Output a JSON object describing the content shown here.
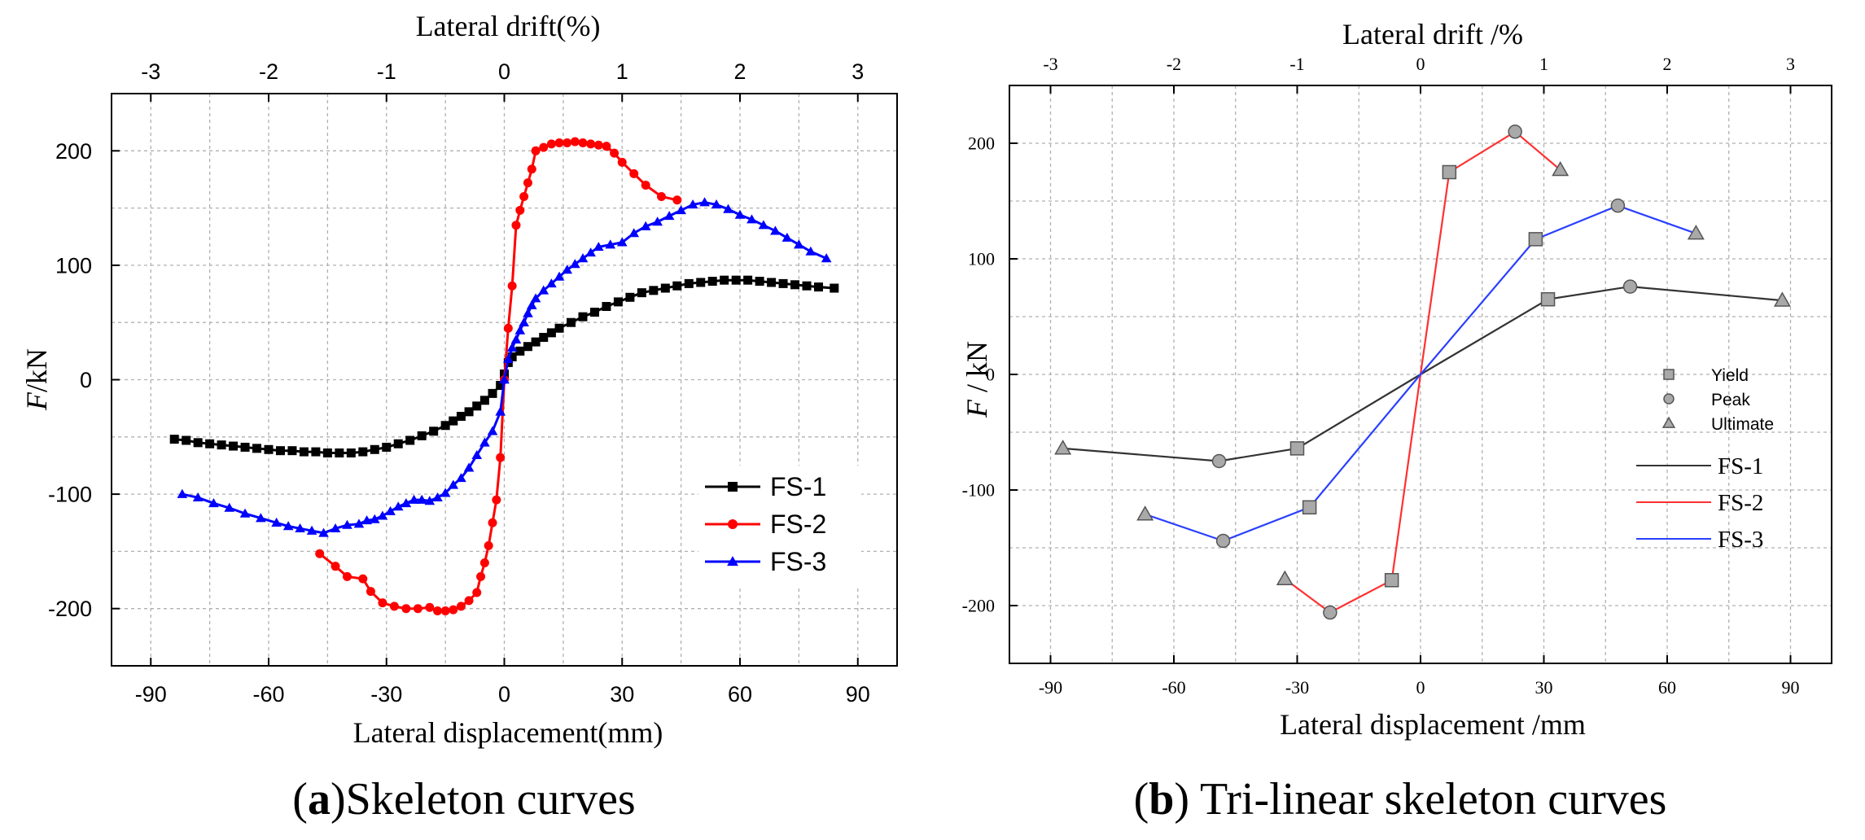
{
  "chart_data": [
    {
      "type": "line",
      "caption_letter": "a",
      "caption_text": "Skeleton curves",
      "xlabel": "Lateral displacement(mm)",
      "ylabel_italic": "F",
      "ylabel_rest": "/kN",
      "x2label": "Lateral drift(%)",
      "xlim": [
        -100,
        100
      ],
      "ylim": [
        -250,
        250
      ],
      "x_ticks": [
        -90,
        -60,
        -30,
        0,
        30,
        60,
        90
      ],
      "y_ticks": [
        -200,
        -100,
        0,
        100,
        200
      ],
      "x2_ticks": [
        -3,
        -2,
        -1,
        0,
        1,
        2,
        3
      ],
      "x2_scale_mm_per_unit": 30,
      "grid": true,
      "legend_position": "lower-right",
      "series": [
        {
          "name": "FS-1",
          "color": "#000000",
          "marker": "square",
          "points": [
            [
              -84,
              -52
            ],
            [
              -81,
              -53
            ],
            [
              -78,
              -55
            ],
            [
              -75,
              -56
            ],
            [
              -72,
              -57
            ],
            [
              -69,
              -58
            ],
            [
              -66,
              -59
            ],
            [
              -63,
              -60
            ],
            [
              -60,
              -61
            ],
            [
              -57,
              -62
            ],
            [
              -54,
              -62
            ],
            [
              -51,
              -63
            ],
            [
              -48,
              -63
            ],
            [
              -45,
              -64
            ],
            [
              -42,
              -64
            ],
            [
              -39,
              -64
            ],
            [
              -36,
              -63
            ],
            [
              -33,
              -61
            ],
            [
              -30,
              -59
            ],
            [
              -27,
              -56
            ],
            [
              -24,
              -53
            ],
            [
              -21,
              -49
            ],
            [
              -18,
              -45
            ],
            [
              -15,
              -40
            ],
            [
              -13,
              -36
            ],
            [
              -11,
              -32
            ],
            [
              -9,
              -28
            ],
            [
              -7,
              -23
            ],
            [
              -5,
              -18
            ],
            [
              -3,
              -12
            ],
            [
              -1,
              -5
            ],
            [
              0,
              5
            ],
            [
              1,
              15
            ],
            [
              2,
              20
            ],
            [
              4,
              25
            ],
            [
              6,
              29
            ],
            [
              8,
              33
            ],
            [
              10,
              37
            ],
            [
              12,
              41
            ],
            [
              14,
              45
            ],
            [
              17,
              50
            ],
            [
              20,
              55
            ],
            [
              23,
              59
            ],
            [
              26,
              64
            ],
            [
              29,
              68
            ],
            [
              32,
              72
            ],
            [
              35,
              76
            ],
            [
              38,
              78
            ],
            [
              41,
              80
            ],
            [
              44,
              82
            ],
            [
              47,
              84
            ],
            [
              50,
              85
            ],
            [
              53,
              86
            ],
            [
              56,
              87
            ],
            [
              59,
              87
            ],
            [
              62,
              87
            ],
            [
              65,
              86
            ],
            [
              68,
              85
            ],
            [
              71,
              84
            ],
            [
              74,
              83
            ],
            [
              77,
              82
            ],
            [
              80,
              81
            ],
            [
              84,
              80
            ]
          ]
        },
        {
          "name": "FS-2",
          "color": "#ff0000",
          "marker": "circle",
          "points": [
            [
              -47,
              -152
            ],
            [
              -43,
              -163
            ],
            [
              -40,
              -172
            ],
            [
              -36,
              -174
            ],
            [
              -34,
              -185
            ],
            [
              -31,
              -195
            ],
            [
              -28,
              -198
            ],
            [
              -25,
              -200
            ],
            [
              -22,
              -200
            ],
            [
              -19,
              -199
            ],
            [
              -17,
              -202
            ],
            [
              -15,
              -202
            ],
            [
              -13,
              -201
            ],
            [
              -11,
              -198
            ],
            [
              -9,
              -193
            ],
            [
              -7,
              -186
            ],
            [
              -6,
              -172
            ],
            [
              -5,
              -160
            ],
            [
              -4,
              -145
            ],
            [
              -3,
              -125
            ],
            [
              -2,
              -105
            ],
            [
              -1,
              -68
            ],
            [
              0,
              0
            ],
            [
              1,
              45
            ],
            [
              2,
              82
            ],
            [
              3,
              135
            ],
            [
              4,
              148
            ],
            [
              5,
              160
            ],
            [
              6,
              172
            ],
            [
              7,
              184
            ],
            [
              8,
              200
            ],
            [
              10,
              203
            ],
            [
              12,
              206
            ],
            [
              14,
              207
            ],
            [
              16,
              207
            ],
            [
              18,
              208
            ],
            [
              20,
              207
            ],
            [
              22,
              206
            ],
            [
              24,
              205
            ],
            [
              26,
              204
            ],
            [
              28,
              198
            ],
            [
              30,
              190
            ],
            [
              33,
              180
            ],
            [
              36,
              170
            ],
            [
              40,
              160
            ],
            [
              44,
              157
            ]
          ]
        },
        {
          "name": "FS-3",
          "color": "#0000ff",
          "marker": "triangle",
          "points": [
            [
              -82,
              -100
            ],
            [
              -78,
              -103
            ],
            [
              -74,
              -108
            ],
            [
              -70,
              -112
            ],
            [
              -66,
              -117
            ],
            [
              -62,
              -121
            ],
            [
              -58,
              -125
            ],
            [
              -55,
              -128
            ],
            [
              -52,
              -130
            ],
            [
              -49,
              -132
            ],
            [
              -46,
              -134
            ],
            [
              -43,
              -130
            ],
            [
              -40,
              -127
            ],
            [
              -37,
              -126
            ],
            [
              -35,
              -123
            ],
            [
              -33,
              -122
            ],
            [
              -31,
              -119
            ],
            [
              -29,
              -115
            ],
            [
              -27,
              -111
            ],
            [
              -25,
              -108
            ],
            [
              -23,
              -105
            ],
            [
              -21,
              -105
            ],
            [
              -19,
              -106
            ],
            [
              -17,
              -103
            ],
            [
              -15,
              -99
            ],
            [
              -13,
              -92
            ],
            [
              -11,
              -86
            ],
            [
              -9,
              -77
            ],
            [
              -7,
              -66
            ],
            [
              -5,
              -55
            ],
            [
              -3,
              -45
            ],
            [
              -1,
              -28
            ],
            [
              0,
              0
            ],
            [
              1,
              18
            ],
            [
              2,
              28
            ],
            [
              3,
              35
            ],
            [
              4,
              43
            ],
            [
              5,
              50
            ],
            [
              6,
              58
            ],
            [
              7,
              65
            ],
            [
              8,
              71
            ],
            [
              10,
              78
            ],
            [
              12,
              84
            ],
            [
              14,
              90
            ],
            [
              16,
              96
            ],
            [
              18,
              101
            ],
            [
              20,
              106
            ],
            [
              22,
              111
            ],
            [
              24,
              116
            ],
            [
              27,
              118
            ],
            [
              30,
              120
            ],
            [
              33,
              128
            ],
            [
              36,
              134
            ],
            [
              39,
              138
            ],
            [
              42,
              143
            ],
            [
              45,
              148
            ],
            [
              48,
              153
            ],
            [
              51,
              155
            ],
            [
              54,
              153
            ],
            [
              57,
              149
            ],
            [
              60,
              144
            ],
            [
              63,
              140
            ],
            [
              66,
              135
            ],
            [
              69,
              130
            ],
            [
              72,
              124
            ],
            [
              75,
              118
            ],
            [
              78,
              112
            ],
            [
              82,
              106
            ]
          ]
        }
      ]
    },
    {
      "type": "line",
      "caption_letter": "b",
      "caption_text": "Tri-linear skeleton curves",
      "xlabel": "Lateral displacement /mm",
      "ylabel_italic": "F",
      "ylabel_rest": " / kN",
      "x2label": "Lateral drift /%",
      "xlim": [
        -100,
        100
      ],
      "ylim": [
        -250,
        250
      ],
      "x_ticks": [
        -90,
        -60,
        -30,
        0,
        30,
        60,
        90
      ],
      "y_ticks": [
        -200,
        -100,
        0,
        100,
        200
      ],
      "x2_ticks": [
        -3,
        -2,
        -1,
        0,
        1,
        2,
        3
      ],
      "x2_scale_mm_per_unit": 30,
      "grid": true,
      "legend_position": "right",
      "marker_legend": [
        {
          "label": "Yield",
          "marker": "square"
        },
        {
          "label": "Peak",
          "marker": "circle"
        },
        {
          "label": "Ultimate",
          "marker": "triangle"
        }
      ],
      "series": [
        {
          "name": "FS-1",
          "color": "#333333",
          "points": [
            [
              -87,
              -64,
              "triangle"
            ],
            [
              -49,
              -75,
              "circle"
            ],
            [
              -30,
              -64,
              "square"
            ],
            [
              0,
              0,
              ""
            ],
            [
              31,
              65,
              "square"
            ],
            [
              51,
              76,
              "circle"
            ],
            [
              88,
              64,
              "triangle"
            ]
          ]
        },
        {
          "name": "FS-2",
          "color": "#ff3030",
          "points": [
            [
              -33,
              -177,
              "triangle"
            ],
            [
              -22,
              -206,
              "circle"
            ],
            [
              -7,
              -178,
              "square"
            ],
            [
              0,
              0,
              ""
            ],
            [
              7,
              175,
              "square"
            ],
            [
              23,
              210,
              "circle"
            ],
            [
              34,
              177,
              "triangle"
            ]
          ]
        },
        {
          "name": "FS-3",
          "color": "#2a40ff",
          "points": [
            [
              -67,
              -121,
              "triangle"
            ],
            [
              -48,
              -144,
              "circle"
            ],
            [
              -27,
              -115,
              "square"
            ],
            [
              0,
              0,
              ""
            ],
            [
              28,
              117,
              "square"
            ],
            [
              48,
              146,
              "circle"
            ],
            [
              67,
              122,
              "triangle"
            ]
          ]
        }
      ]
    }
  ]
}
